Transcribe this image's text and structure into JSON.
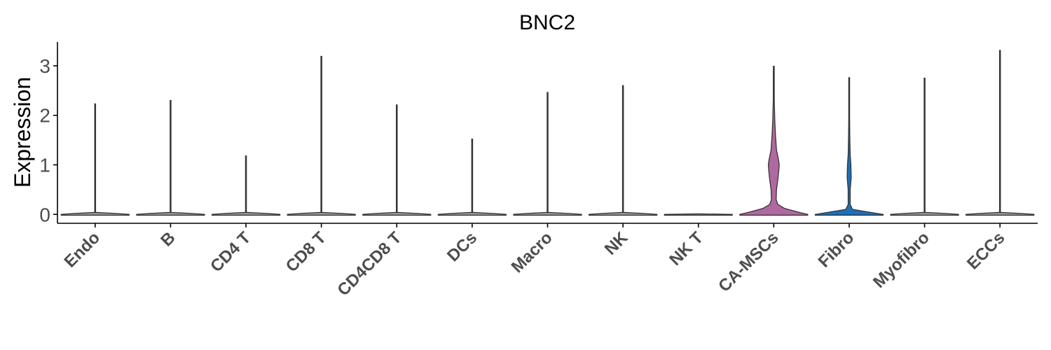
{
  "chart_data": {
    "type": "violin",
    "title": "BNC2",
    "ylabel": "Expression",
    "xlabel": "",
    "ylim": [
      -0.18,
      3.48
    ],
    "yticks": [
      0,
      1,
      2,
      3
    ],
    "grid": false,
    "legend": "none",
    "categories": [
      "Endo",
      "B",
      "CD4 T",
      "CD8 T",
      "CD4CD8 T",
      "DCs",
      "Macro",
      "NK",
      "NK T",
      "CA-MSCs",
      "Fibro",
      "Myofibro",
      "ECCs"
    ],
    "max_values": [
      2.23,
      2.3,
      1.18,
      3.19,
      2.21,
      1.52,
      2.46,
      2.6,
      0.0,
      2.99,
      2.76,
      2.75,
      3.31
    ],
    "colors": {
      "default_fill": "#9a9a9a",
      "CA-MSCs": "#b069a0",
      "Fibro": "#1f6fb8"
    },
    "density_profiles": {
      "CA-MSCs": [
        [
          0.0,
          1.0
        ],
        [
          0.05,
          0.7
        ],
        [
          0.12,
          0.32
        ],
        [
          0.2,
          0.12
        ],
        [
          0.3,
          0.07
        ],
        [
          0.5,
          0.08
        ],
        [
          0.7,
          0.12
        ],
        [
          0.9,
          0.15
        ],
        [
          1.0,
          0.16
        ],
        [
          1.1,
          0.14
        ],
        [
          1.3,
          0.08
        ],
        [
          1.6,
          0.05
        ],
        [
          1.9,
          0.03
        ],
        [
          2.3,
          0.015
        ],
        [
          2.99,
          0.0
        ]
      ],
      "Fibro": [
        [
          0.0,
          1.0
        ],
        [
          0.05,
          0.55
        ],
        [
          0.1,
          0.1
        ],
        [
          0.2,
          0.03
        ],
        [
          0.5,
          0.03
        ],
        [
          0.75,
          0.06
        ],
        [
          1.0,
          0.05
        ],
        [
          1.2,
          0.03
        ],
        [
          1.5,
          0.02
        ],
        [
          1.9,
          0.01
        ],
        [
          2.76,
          0.0
        ]
      ]
    }
  }
}
